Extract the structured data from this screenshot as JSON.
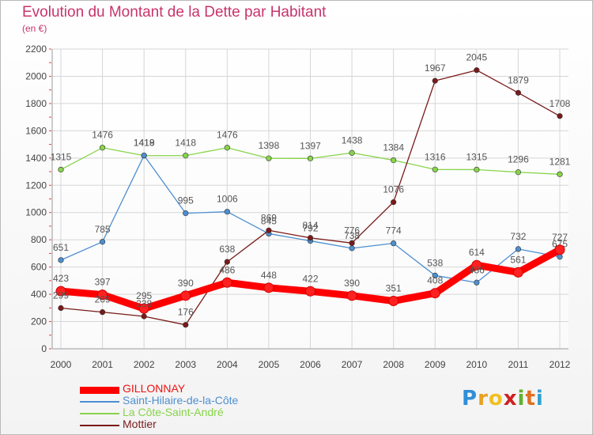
{
  "chart_data": {
    "type": "line",
    "title": "Evolution du Montant de la Dette par Habitant",
    "subtitle": "(en €)",
    "x": [
      "2000",
      "2001",
      "2002",
      "2003",
      "2004",
      "2005",
      "2006",
      "2007",
      "2008",
      "2009",
      "2010",
      "2011",
      "2012"
    ],
    "ylim": [
      0,
      2200
    ],
    "yticks": [
      0,
      200,
      400,
      600,
      800,
      1000,
      1200,
      1400,
      1600,
      1800,
      2000,
      2200
    ],
    "grid": true,
    "legend_position": "bottom-left",
    "series": [
      {
        "name": "GILLONNAY",
        "color": "#ff0000",
        "values": [
          423,
          397,
          295,
          390,
          486,
          448,
          422,
          390,
          351,
          408,
          614,
          561,
          727
        ]
      },
      {
        "name": "Saint-Hilaire-de-la-Côte",
        "color": "#4d8fd0",
        "values": [
          651,
          785,
          1419,
          995,
          1006,
          845,
          792,
          738,
          774,
          538,
          486,
          732,
          675
        ]
      },
      {
        "name": "La Côte-Saint-André",
        "color": "#88d44a",
        "values": [
          1315,
          1476,
          1418,
          1418,
          1476,
          1398,
          1397,
          1438,
          1384,
          1316,
          1315,
          1296,
          1281
        ]
      },
      {
        "name": "Mottier",
        "color": "#7a1a1a",
        "values": [
          299,
          269,
          238,
          176,
          638,
          869,
          814,
          776,
          1076,
          1967,
          2045,
          1879,
          1708
        ]
      }
    ]
  },
  "logo": {
    "letters": [
      "P",
      "r",
      "o",
      "x",
      "i",
      "t",
      "i"
    ],
    "colors": [
      "#2f8fd8",
      "#e8a020",
      "#f0c020",
      "#d02020",
      "#60b030",
      "#e07020",
      "#30a0d0"
    ]
  }
}
